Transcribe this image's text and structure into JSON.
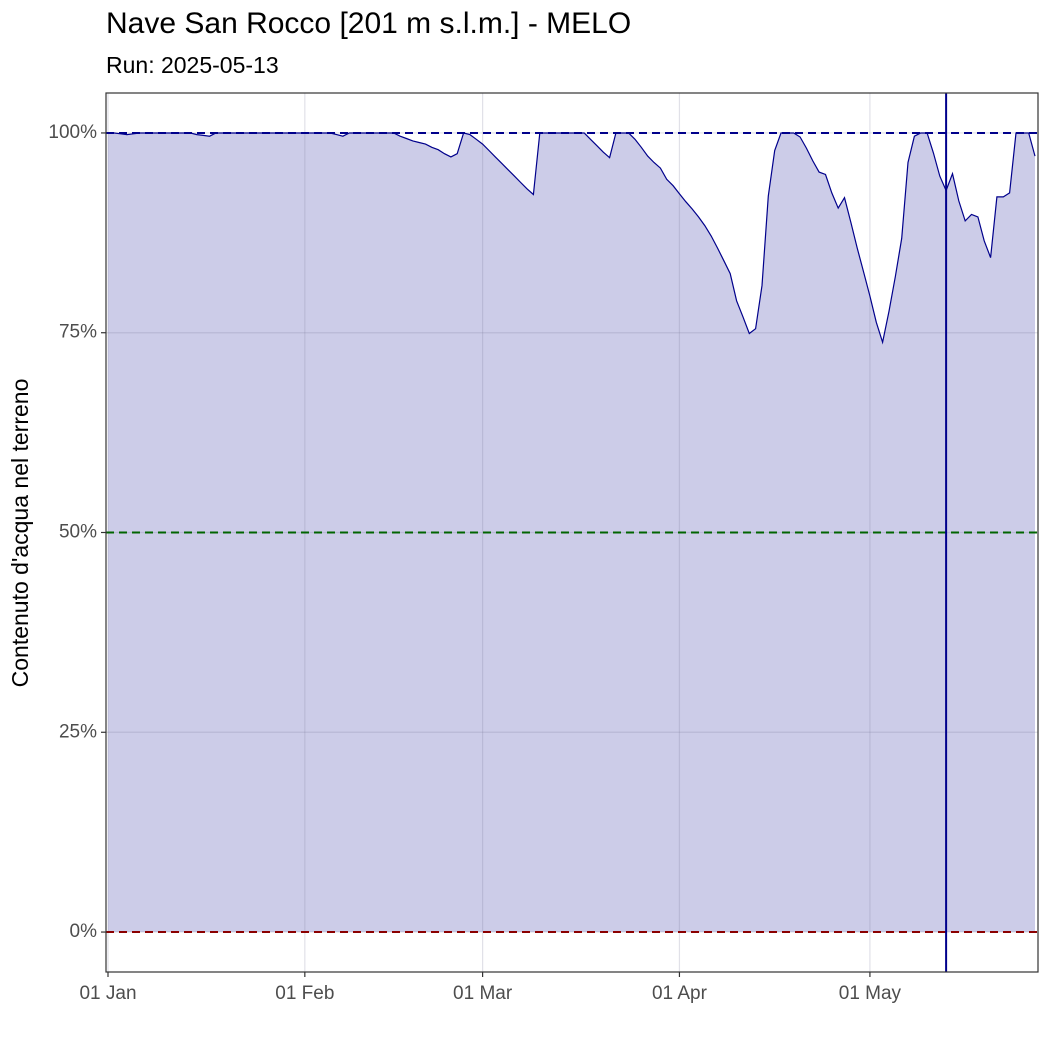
{
  "chart_data": {
    "type": "area",
    "title": "Nave San Rocco [201 m s.l.m.] - MELO",
    "subtitle": "Run: 2025-05-13",
    "y_label": "Contenuto d'acqua nel terreno",
    "x": [
      "01-01",
      "01-02",
      "01-03",
      "01-04",
      "01-05",
      "01-06",
      "01-07",
      "01-08",
      "01-09",
      "01-10",
      "01-11",
      "01-12",
      "01-13",
      "01-14",
      "01-15",
      "01-16",
      "01-17",
      "01-18",
      "01-19",
      "01-20",
      "01-21",
      "01-22",
      "01-23",
      "01-24",
      "01-25",
      "01-26",
      "01-27",
      "01-28",
      "01-29",
      "01-30",
      "01-31",
      "02-01",
      "02-02",
      "02-03",
      "02-04",
      "02-05",
      "02-06",
      "02-07",
      "02-08",
      "02-09",
      "02-10",
      "02-11",
      "02-12",
      "02-13",
      "02-14",
      "02-15",
      "02-16",
      "02-17",
      "02-18",
      "02-19",
      "02-20",
      "02-21",
      "02-22",
      "02-23",
      "02-24",
      "02-25",
      "02-26",
      "02-27",
      "02-28",
      "03-01",
      "03-02",
      "03-03",
      "03-04",
      "03-05",
      "03-06",
      "03-07",
      "03-08",
      "03-09",
      "03-10",
      "03-11",
      "03-12",
      "03-13",
      "03-14",
      "03-15",
      "03-16",
      "03-17",
      "03-18",
      "03-19",
      "03-20",
      "03-21",
      "03-22",
      "03-23",
      "03-24",
      "03-25",
      "03-26",
      "03-27",
      "03-28",
      "03-29",
      "03-30",
      "03-31",
      "04-01",
      "04-02",
      "04-03",
      "04-04",
      "04-05",
      "04-06",
      "04-07",
      "04-08",
      "04-09",
      "04-10",
      "04-11",
      "04-12",
      "04-13",
      "04-14",
      "04-15",
      "04-16",
      "04-17",
      "04-18",
      "04-19",
      "04-20",
      "04-21",
      "04-22",
      "04-23",
      "04-24",
      "04-25",
      "04-26",
      "04-27",
      "04-28",
      "04-29",
      "04-30",
      "05-01",
      "05-02",
      "05-03",
      "05-04",
      "05-05",
      "05-06",
      "05-07",
      "05-08",
      "05-09",
      "05-10",
      "05-11",
      "05-12",
      "05-13",
      "05-14",
      "05-15",
      "05-16",
      "05-17",
      "05-18",
      "05-19",
      "05-20",
      "05-21",
      "05-22",
      "05-23",
      "05-24",
      "05-25",
      "05-26",
      "05-27"
    ],
    "series": [
      {
        "color": "#00008b",
        "fill": "#cccce8",
        "values": [
          100,
          100,
          99.9,
          99.8,
          99.9,
          100,
          100,
          100,
          100,
          100,
          100,
          100,
          100,
          100,
          99.8,
          99.7,
          99.6,
          100,
          100,
          100,
          100,
          100,
          100,
          100,
          100,
          100,
          100,
          100,
          100,
          100,
          100,
          100,
          100,
          100,
          100,
          100,
          99.8,
          99.6,
          100,
          100,
          100,
          100,
          100,
          100,
          100,
          100,
          99.6,
          99.3,
          99.0,
          98.8,
          98.6,
          98.2,
          97.9,
          97.4,
          97.0,
          97.4,
          100,
          99.8,
          99.2,
          98.6,
          97.8,
          97.0,
          96.2,
          95.4,
          94.6,
          93.8,
          93.0,
          92.3,
          100,
          100,
          100,
          100,
          100,
          100,
          100,
          100,
          99.2,
          98.4,
          97.6,
          96.9,
          100,
          100,
          100,
          99.2,
          98.2,
          97.1,
          96.3,
          95.6,
          94.2,
          93.4,
          92.4,
          91.4,
          90.5,
          89.5,
          88.4,
          87.1,
          85.6,
          84.0,
          82.4,
          79.0,
          77.0,
          74.9,
          75.5,
          80.9,
          92.1,
          97.8,
          100,
          100,
          100,
          99.5,
          98.1,
          96.5,
          95.1,
          94.8,
          92.5,
          90.6,
          91.9,
          88.8,
          85.6,
          82.6,
          79.6,
          76.3,
          73.8,
          77.7,
          82,
          86.8,
          96.3,
          99.6,
          100,
          100,
          97.5,
          94.6,
          92.8,
          94.9,
          91.5,
          89,
          89.8,
          89.5,
          86.5,
          84.4,
          92,
          92,
          92.5,
          100,
          100,
          100,
          97.1
        ]
      }
    ],
    "hlines": [
      {
        "value": 100,
        "color": "#00008b"
      },
      {
        "value": 50,
        "color": "#006400"
      },
      {
        "value": 0,
        "color": "#8b0000"
      }
    ],
    "vline": {
      "x": "05-13",
      "color": "#00008b"
    },
    "xlim": [
      "01-01",
      "05-27"
    ],
    "xticks": [
      {
        "value": "01-01",
        "label": "01 Jan"
      },
      {
        "value": "02-01",
        "label": "01 Feb"
      },
      {
        "value": "03-01",
        "label": "01 Mar"
      },
      {
        "value": "04-01",
        "label": "01 Apr"
      },
      {
        "value": "05-01",
        "label": "01 May"
      }
    ],
    "ylim": [
      -5,
      105
    ],
    "yticks": [
      {
        "value": 0,
        "label": "0%"
      },
      {
        "value": 25,
        "label": "25%"
      },
      {
        "value": 50,
        "label": "50%"
      },
      {
        "value": 75,
        "label": "75%"
      },
      {
        "value": 100,
        "label": "100%"
      }
    ],
    "grid": true
  }
}
